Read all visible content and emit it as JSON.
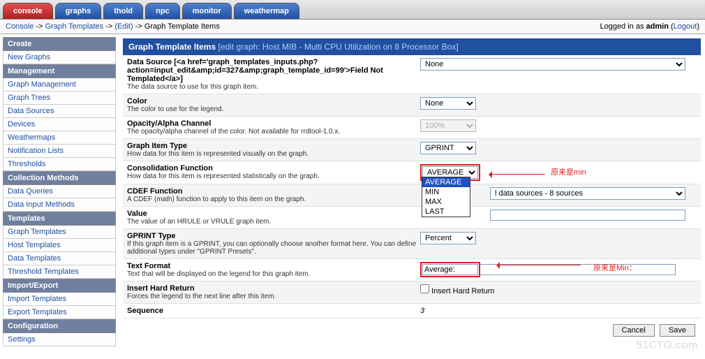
{
  "tabs": [
    "console",
    "graphs",
    "thold",
    "npc",
    "monitor",
    "weathermap"
  ],
  "breadcrumb": {
    "console": "Console",
    "sep": " -> ",
    "gt": "Graph Templates",
    "edit": "(Edit)",
    "tail": "Graph Template Items"
  },
  "login": {
    "prefix": "Logged in as ",
    "user": "admin",
    "logout": "Logout"
  },
  "sidebar": {
    "sections": [
      {
        "header": "Create",
        "items": [
          "New Graphs"
        ]
      },
      {
        "header": "Management",
        "items": [
          "Graph Management",
          "Graph Trees",
          "Data Sources",
          "Devices",
          "Weathermaps",
          "Notification Lists",
          "Thresholds"
        ]
      },
      {
        "header": "Collection Methods",
        "items": [
          "Data Queries",
          "Data Input Methods"
        ]
      },
      {
        "header": "Templates",
        "items": [
          "Graph Templates",
          "Host Templates",
          "Data Templates",
          "Threshold Templates"
        ]
      },
      {
        "header": "Import/Export",
        "items": [
          "Import Templates",
          "Export Templates"
        ]
      },
      {
        "header": "Configuration",
        "items": [
          "Settings"
        ]
      }
    ]
  },
  "panel": {
    "title": "Graph Template Items",
    "sub": "[edit graph: Host MIB - Multi CPU Utilization on 8 Processor Box]"
  },
  "rows": {
    "datasource": {
      "label": "Data Source [<a href='graph_templates_inputs.php?action=input_edit&amp;id=327&amp;graph_template_id=99'>Field Not Templated</a>]",
      "desc": "The data source to use for this graph item.",
      "value": "None"
    },
    "color": {
      "label": "Color",
      "desc": "The color to use for the legend.",
      "value": "None"
    },
    "opacity": {
      "label": "Opacity/Alpha Channel",
      "desc": "The opacity/alpha channel of the color. Not available for rrdtool-1.0.x.",
      "value": "100%"
    },
    "itemtype": {
      "label": "Graph Item Type",
      "desc": "How data for this item is represented visually on the graph.",
      "value": "GPRINT"
    },
    "consol": {
      "label": "Consolidation Function",
      "desc": "How data for this item is represented statistically on the graph.",
      "value": "AVERAGE",
      "options": [
        "AVERAGE",
        "MIN",
        "MAX",
        "LAST"
      ],
      "annot": "原来是min"
    },
    "cdef": {
      "label": "CDEF Function",
      "desc": "A CDEF (math) function to apply to this item on the graph.",
      "value": "l data sources - 8 sources"
    },
    "value": {
      "label": "Value",
      "desc": "The value of an HRULE or VRULE graph item.",
      "value": ""
    },
    "gprint": {
      "label": "GPRINT Type",
      "desc": "If this graph item is a GPRINT, you can optionally choose another format here. You can define additional types under \"GPRINT Presets\".",
      "value": "Percent"
    },
    "textfmt": {
      "label": "Text Format",
      "desc": "Text that will be displayed on the legend for this graph item.",
      "value": "Average:",
      "annot": "原来是Min："
    },
    "hardret": {
      "label": "Insert Hard Return",
      "desc": "Forces the legend to the next line after this item.",
      "checkbox": "Insert Hard Return"
    },
    "seq": {
      "label": "Sequence",
      "value": "3"
    }
  },
  "buttons": {
    "cancel": "Cancel",
    "save": "Save"
  },
  "watermark": "51CTO.com"
}
